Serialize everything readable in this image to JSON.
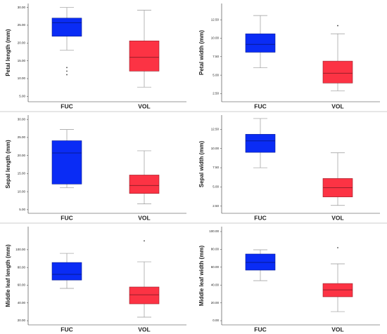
{
  "chart_data": [
    {
      "type": "box",
      "y_label": "Petal length (mm)",
      "categories": [
        "FUC",
        "VOL"
      ],
      "colors": [
        "#0a2cf5",
        "#fc3344"
      ],
      "whisker_low": [
        18,
        7.6
      ],
      "q1": [
        21.9,
        12.1
      ],
      "median": [
        25.7,
        16.0
      ],
      "q3": [
        27,
        20.6
      ],
      "whisker_high": [
        30,
        29.2
      ],
      "outliers": [
        [
          13.1,
          12.1,
          11.1
        ],
        []
      ],
      "ylim": [
        3.5,
        31.1
      ],
      "yticks": [
        {
          "value": 5,
          "label": "5.00"
        },
        {
          "value": 10,
          "label": "10.00"
        },
        {
          "value": 15,
          "label": "15.00"
        },
        {
          "value": 20,
          "label": "20.00"
        },
        {
          "value": 25,
          "label": "25.00"
        },
        {
          "value": 30,
          "label": "30.00"
        }
      ]
    },
    {
      "type": "box",
      "y_label": "Petal width (mm)",
      "categories": [
        "FUC",
        "VOL"
      ],
      "colors": [
        "#0a2cf5",
        "#fc3344"
      ],
      "whisker_low": [
        6.0,
        2.88
      ],
      "q1": [
        8.1,
        3.93
      ],
      "median": [
        9.17,
        5.26
      ],
      "q3": [
        10.6,
        6.9
      ],
      "whisker_high": [
        13.07,
        10.6
      ],
      "outliers": [
        [],
        [
          11.7
        ]
      ],
      "ylim": [
        1.4,
        14.7
      ],
      "yticks": [
        {
          "value": 2.5,
          "label": "2.50"
        },
        {
          "value": 5,
          "label": "5.00"
        },
        {
          "value": 7.5,
          "label": "7.50"
        },
        {
          "value": 10,
          "label": "10.00"
        },
        {
          "value": 12.5,
          "label": "12.50"
        }
      ]
    },
    {
      "type": "box",
      "y_label": "Sepal length (mm)",
      "categories": [
        "FUC",
        "VOL"
      ],
      "colors": [
        "#0a2cf5",
        "#fc3344"
      ],
      "whisker_low": [
        11.1,
        6.6
      ],
      "q1": [
        12.1,
        9.5
      ],
      "median": [
        20.7,
        11.7
      ],
      "q3": [
        24.1,
        14.6
      ],
      "whisker_high": [
        27.2,
        21.3
      ],
      "outliers": [
        [],
        []
      ],
      "ylim": [
        4.0,
        31.2
      ],
      "yticks": [
        {
          "value": 5,
          "label": "5.00"
        },
        {
          "value": 10,
          "label": "10.00"
        },
        {
          "value": 15,
          "label": "15.00"
        },
        {
          "value": 20,
          "label": "20.00"
        },
        {
          "value": 25,
          "label": "25.00"
        },
        {
          "value": 30,
          "label": "30.00"
        }
      ]
    },
    {
      "type": "box",
      "y_label": "Sepal width (mm)",
      "categories": [
        "FUC",
        "VOL"
      ],
      "colors": [
        "#0a2cf5",
        "#fc3344"
      ],
      "whisker_low": [
        7.5,
        2.6
      ],
      "q1": [
        9.5,
        3.7
      ],
      "median": [
        11.0,
        4.9
      ],
      "q3": [
        11.85,
        6.1
      ],
      "whisker_high": [
        13.9,
        9.44
      ],
      "outliers": [
        [],
        []
      ],
      "ylim": [
        1.57,
        14.35
      ],
      "yticks": [
        {
          "value": 2.5,
          "label": "2.50"
        },
        {
          "value": 5,
          "label": "5.00"
        },
        {
          "value": 7.5,
          "label": "7.50"
        },
        {
          "value": 10,
          "label": "10.00"
        },
        {
          "value": 12.5,
          "label": "12.50"
        }
      ]
    },
    {
      "type": "box",
      "y_label": "Middle leaf length (mm)",
      "categories": [
        "FUC",
        "VOL"
      ],
      "colors": [
        "#0a2cf5",
        "#fc3344"
      ],
      "whisker_low": [
        56.4,
        24
      ],
      "q1": [
        65.8,
        39
      ],
      "median": [
        72.2,
        49.2
      ],
      "q3": [
        85.6,
        58
      ],
      "whisker_high": [
        95.9,
        86.4
      ],
      "outliers": [
        [],
        [
          110
        ]
      ],
      "ylim": [
        15.3,
        126
      ],
      "yticks": [
        {
          "value": 20,
          "label": "20.00"
        },
        {
          "value": 40,
          "label": "40.00"
        },
        {
          "value": 60,
          "label": "60.00"
        },
        {
          "value": 80,
          "label": "80.00"
        },
        {
          "value": 100,
          "label": "100.00"
        }
      ]
    },
    {
      "type": "box",
      "y_label": "Middle leaf width (mm)",
      "categories": [
        "FUC",
        "VOL"
      ],
      "colors": [
        "#0a2cf5",
        "#fc3344"
      ],
      "whisker_low": [
        44.9,
        10.2
      ],
      "q1": [
        56.7,
        26.8
      ],
      "median": [
        65.4,
        34.6
      ],
      "q3": [
        74.8,
        41.7
      ],
      "whisker_high": [
        79.5,
        63.8
      ],
      "outliers": [
        [],
        [
          81.9
        ]
      ],
      "ylim": [
        -4.7,
        105.5
      ],
      "yticks": [
        {
          "value": 0,
          "label": "0.00"
        },
        {
          "value": 20,
          "label": "20.00"
        },
        {
          "value": 40,
          "label": "40.00"
        },
        {
          "value": 60,
          "label": "60.00"
        },
        {
          "value": 80,
          "label": "80.00"
        },
        {
          "value": 100,
          "label": "100.00"
        }
      ]
    }
  ]
}
